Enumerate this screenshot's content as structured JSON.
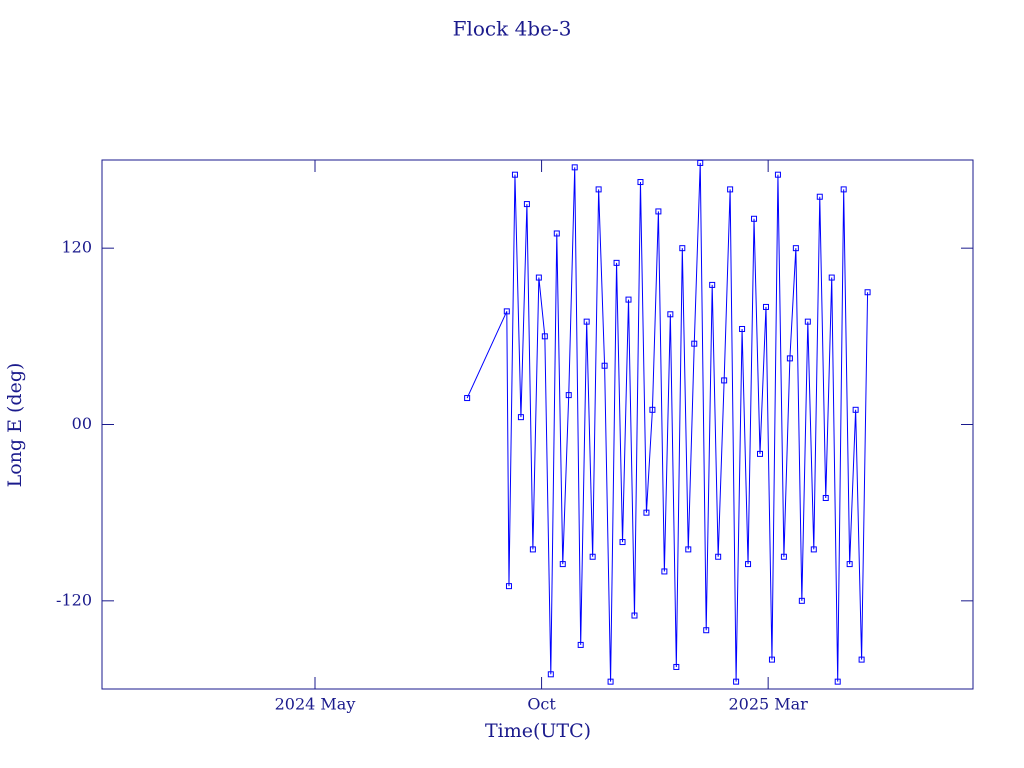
{
  "chart_data": {
    "type": "line",
    "title": "Flock 4be-3",
    "xlabel": "Time(UTC)",
    "ylabel": "Long E (deg)",
    "xlim": [
      2023.941,
      2025.544
    ],
    "ylim": [
      -180,
      180
    ],
    "xticks": [
      {
        "value": 2024.333,
        "label": "2024 May"
      },
      {
        "value": 2024.75,
        "label": "Oct"
      },
      {
        "value": 2025.167,
        "label": "2025 Mar"
      }
    ],
    "yticks": [
      -120,
      {
        "value": 0,
        "label": "00"
      },
      120
    ],
    "series": [
      {
        "color": "#0000ff",
        "x": [
          2024.613,
          2024.686,
          2024.69,
          2024.701,
          2024.712,
          2024.723,
          2024.734,
          2024.745,
          2024.756,
          2024.767,
          2024.778,
          2024.789,
          2024.8,
          2024.811,
          2024.822,
          2024.833,
          2024.844,
          2024.855,
          2024.866,
          2024.877,
          2024.888,
          2024.899,
          2024.91,
          2024.921,
          2024.932,
          2024.943,
          2024.954,
          2024.965,
          2024.976,
          2024.987,
          2024.998,
          2025.009,
          2025.02,
          2025.031,
          2025.042,
          2025.053,
          2025.064,
          2025.075,
          2025.086,
          2025.097,
          2025.108,
          2025.119,
          2025.13,
          2025.141,
          2025.152,
          2025.163,
          2025.174,
          2025.185,
          2025.196,
          2025.207,
          2025.218,
          2025.229,
          2025.24,
          2025.251,
          2025.262,
          2025.273,
          2025.284,
          2025.295,
          2025.306,
          2025.317,
          2025.328,
          2025.339,
          2025.35
        ],
        "values": [
          18,
          77,
          -110,
          170,
          5,
          150,
          -85,
          100,
          60,
          -170,
          130,
          -95,
          20,
          175,
          -150,
          70,
          -90,
          160,
          40,
          -175,
          110,
          -80,
          85,
          -130,
          165,
          -60,
          10,
          145,
          -100,
          75,
          -165,
          120,
          -85,
          55,
          178,
          -140,
          95,
          -90,
          30,
          160,
          -175,
          65,
          -95,
          140,
          -20,
          80,
          -160,
          170,
          -90,
          45,
          120,
          -120,
          70,
          -85,
          155,
          -50,
          100,
          -175,
          160,
          -95,
          10,
          -160,
          90
        ]
      }
    ]
  }
}
